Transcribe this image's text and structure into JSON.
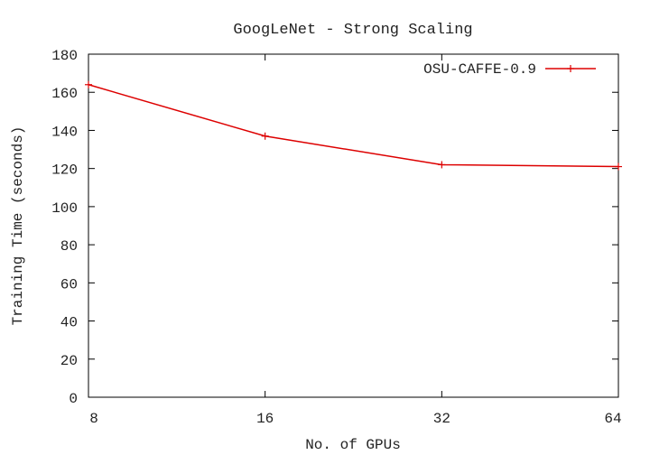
{
  "colors": {
    "series": "#dd0000",
    "axis": "#000000",
    "text": "#222222"
  },
  "chart_data": {
    "type": "line",
    "title": "GoogLeNet - Strong Scaling",
    "xlabel": "No. of GPUs",
    "ylabel": "Training Time (seconds)",
    "x_scale": "log2",
    "x": [
      8,
      16,
      32,
      64
    ],
    "x_tick_labels": [
      "8",
      "16",
      "32",
      "64"
    ],
    "xlim": [
      8,
      64
    ],
    "ylim": [
      0,
      180
    ],
    "y_ticks": [
      0,
      20,
      40,
      60,
      80,
      100,
      120,
      140,
      160,
      180
    ],
    "grid": false,
    "legend_position": "top-right",
    "series": [
      {
        "name": "OSU-CAFFE-0.9",
        "values": [
          164,
          137,
          122,
          121
        ],
        "marker": "plus"
      }
    ]
  }
}
